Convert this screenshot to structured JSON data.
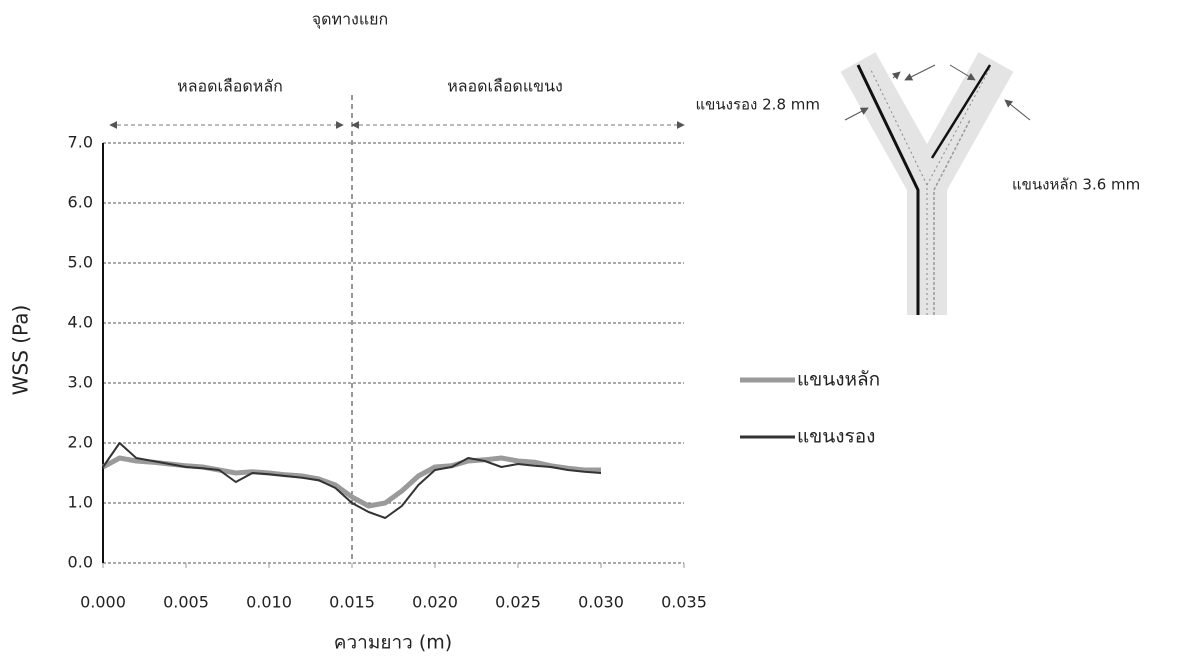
{
  "chart_data": {
    "type": "line",
    "annotations": {
      "junction": "จุดทางแยก",
      "main_vessel": "หลอดเลือดหลัก",
      "branch_vessel": "หลอดเลือดแขนง",
      "secondary_size": "แขนงรอง 2.8 mm",
      "main_size": "แขนงหลัก 3.6 mm"
    },
    "xlabel": "ความยาว (m)",
    "ylabel": "WSS (Pa)",
    "x": [
      0,
      0.001,
      0.002,
      0.003,
      0.004,
      0.005,
      0.006,
      0.007,
      0.008,
      0.009,
      0.01,
      0.011,
      0.012,
      0.013,
      0.014,
      0.015,
      0.016,
      0.017,
      0.018,
      0.019,
      0.02,
      0.021,
      0.022,
      0.023,
      0.024,
      0.025,
      0.026,
      0.027,
      0.028,
      0.029,
      0.03
    ],
    "series": [
      {
        "name": "แขนงหลัก",
        "color": "#9a9a9a",
        "values": [
          1.6,
          1.75,
          1.7,
          1.68,
          1.65,
          1.62,
          1.6,
          1.55,
          1.5,
          1.52,
          1.5,
          1.47,
          1.45,
          1.4,
          1.3,
          1.1,
          0.95,
          1.0,
          1.2,
          1.45,
          1.6,
          1.62,
          1.7,
          1.72,
          1.75,
          1.7,
          1.68,
          1.62,
          1.58,
          1.55,
          1.55
        ]
      },
      {
        "name": "แขนงรอง",
        "color": "#333333",
        "values": [
          1.6,
          2.0,
          1.75,
          1.7,
          1.65,
          1.6,
          1.58,
          1.55,
          1.35,
          1.5,
          1.48,
          1.45,
          1.42,
          1.38,
          1.25,
          1.0,
          0.85,
          0.75,
          0.95,
          1.3,
          1.55,
          1.6,
          1.75,
          1.7,
          1.6,
          1.65,
          1.62,
          1.6,
          1.55,
          1.52,
          1.5
        ]
      }
    ],
    "split_x": 0.015,
    "xlim": [
      0,
      0.035
    ],
    "xticks": [
      {
        "value": 0,
        "label": "0.000"
      },
      {
        "value": 0.005,
        "label": "0.005"
      },
      {
        "value": 0.01,
        "label": "0.010"
      },
      {
        "value": 0.015,
        "label": "0.015"
      },
      {
        "value": 0.02,
        "label": "0.020"
      },
      {
        "value": 0.025,
        "label": "0.025"
      },
      {
        "value": 0.03,
        "label": "0.030"
      },
      {
        "value": 0.035,
        "label": "0.035"
      }
    ],
    "ylim": [
      0,
      7
    ],
    "yticks": [
      {
        "value": 0,
        "label": "0.0"
      },
      {
        "value": 1,
        "label": "1.0"
      },
      {
        "value": 2,
        "label": "2.0"
      },
      {
        "value": 3,
        "label": "3.0"
      },
      {
        "value": 4,
        "label": "4.0"
      },
      {
        "value": 5,
        "label": "5.0"
      },
      {
        "value": 6,
        "label": "6.0"
      },
      {
        "value": 7,
        "label": "7.0"
      }
    ],
    "grid": true
  }
}
